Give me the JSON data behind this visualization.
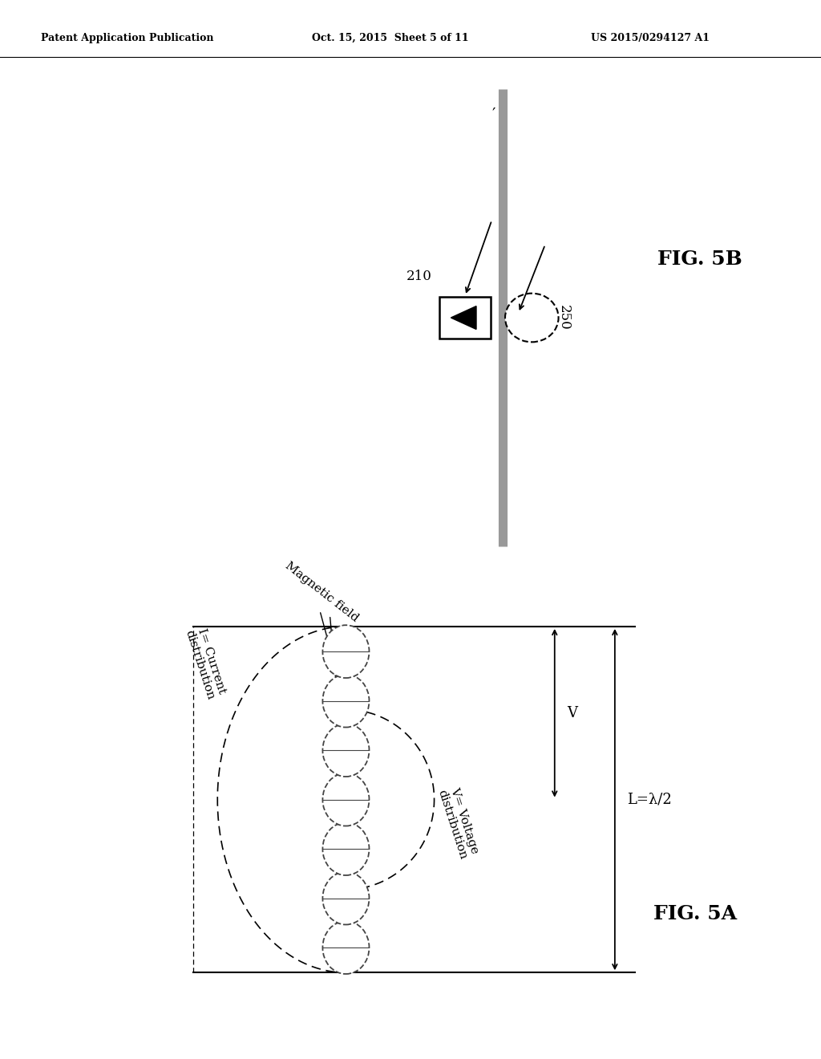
{
  "bg_color": "#ffffff",
  "header_left": "Patent Application Publication",
  "header_mid": "Oct. 15, 2015  Sheet 5 of 11",
  "header_right": "US 2015/0294127 A1",
  "fig5b_label": "FIG. 5B",
  "fig5a_label": "FIG. 5A",
  "label_210": "210",
  "label_250": "250",
  "label_current": "I= Current\ndistribution",
  "label_voltage": "V= Voltage\ndistribution",
  "label_magnetic": "Magnetic field",
  "label_length": "L=λ/2",
  "label_V": "V"
}
